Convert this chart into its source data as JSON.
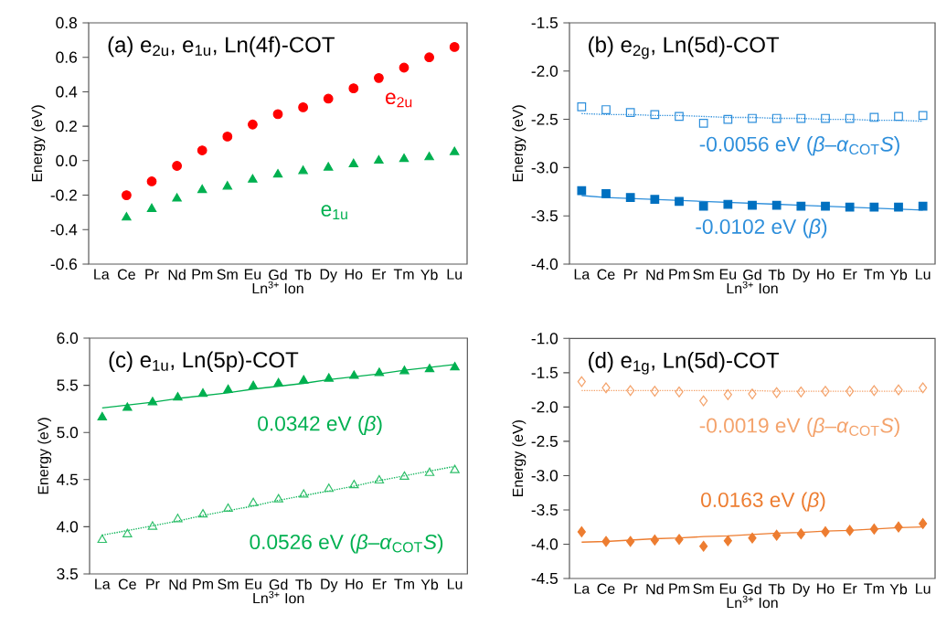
{
  "chart_data": [
    {
      "type": "scatter",
      "title": "(a) e$_{2u}$, e$_{1u}$, Ln(4f)-COT",
      "xlabel": "Ln$^{3+}$ Ion",
      "ylabel": "Energy (eV)",
      "categories": [
        "La",
        "Ce",
        "Pr",
        "Nd",
        "Pm",
        "Sm",
        "Eu",
        "Gd",
        "Tb",
        "Dy",
        "Ho",
        "Er",
        "Tm",
        "Yb",
        "Lu"
      ],
      "ylim": [
        -0.6,
        0.8
      ],
      "yticks": [
        {
          "value": -0.6,
          "label": "-0.6"
        },
        {
          "value": -0.4,
          "label": "-0.4"
        },
        {
          "value": -0.2,
          "label": "-0.2"
        },
        {
          "value": 0,
          "label": "0.0"
        },
        {
          "value": 0.2,
          "label": "0.2"
        },
        {
          "value": 0.4,
          "label": "0.4"
        },
        {
          "value": 0.6,
          "label": "0.6"
        },
        {
          "value": 0.8,
          "label": "0.8"
        }
      ],
      "series": [
        {
          "name": "e$_{2u}$",
          "marker": "circle",
          "color": "#ff0000",
          "values": [
            null,
            -0.2,
            -0.12,
            -0.03,
            0.06,
            0.14,
            0.21,
            0.27,
            0.31,
            0.36,
            0.42,
            0.48,
            0.54,
            0.6,
            0.66
          ]
        },
        {
          "name": "e$_{1u}$",
          "marker": "triangle",
          "color": "#00b050",
          "values": [
            null,
            -0.33,
            -0.28,
            -0.22,
            -0.17,
            -0.15,
            -0.11,
            -0.08,
            -0.06,
            -0.04,
            -0.02,
            0.0,
            0.01,
            0.02,
            0.05
          ]
        }
      ]
    },
    {
      "type": "scatter",
      "title": "(b) e$_{2g}$, Ln(5d)-COT",
      "xlabel": "Ln$^{3+}$ Ion",
      "ylabel": "Energy (eV)",
      "categories": [
        "La",
        "Ce",
        "Pr",
        "Nd",
        "Pm",
        "Sm",
        "Eu",
        "Gd",
        "Tb",
        "Dy",
        "Ho",
        "Er",
        "Tm",
        "Yb",
        "Lu"
      ],
      "ylim": [
        -4.0,
        -1.5
      ],
      "yticks": [
        {
          "value": -4.0,
          "label": "-4.0"
        },
        {
          "value": -3.5,
          "label": "-3.5"
        },
        {
          "value": -3.0,
          "label": "-3.0"
        },
        {
          "value": -2.5,
          "label": "-2.5"
        },
        {
          "value": -2.0,
          "label": "-2.0"
        },
        {
          "value": -1.5,
          "label": "-1.5"
        }
      ],
      "series": [
        {
          "marker": "square",
          "color": "#2e8fdb",
          "values": [
            -2.37,
            -2.4,
            -2.43,
            -2.45,
            -2.47,
            -2.54,
            -2.5,
            -2.49,
            -2.49,
            -2.49,
            -2.49,
            -2.49,
            -2.48,
            -2.47,
            -2.46
          ]
        },
        {
          "marker": "square",
          "color": "#0070c0",
          "values": [
            -3.24,
            -3.27,
            -3.31,
            -3.33,
            -3.35,
            -3.4,
            -3.38,
            -3.39,
            -3.39,
            -3.4,
            -3.4,
            -3.41,
            -3.41,
            -3.41,
            -3.4
          ]
        },
        {
          "name": "-0.0056 eV (*β*–*α*$_{COT}$*S*)",
          "type": "line",
          "line_style": "dotted",
          "color": "#2e8fdb",
          "values": [
            -2.44,
            -2.45,
            -2.45,
            -2.46,
            -2.46,
            -2.47,
            -2.48,
            -2.48,
            -2.49,
            -2.49,
            -2.5,
            -2.5,
            -2.51,
            -2.51,
            -2.52
          ]
        },
        {
          "name": "-0.0102 eV (*β*)",
          "type": "line",
          "line_style": "solid",
          "color": "#2e8fdb",
          "values": [
            -3.29,
            -3.31,
            -3.32,
            -3.33,
            -3.34,
            -3.35,
            -3.36,
            -3.37,
            -3.38,
            -3.39,
            -3.4,
            -3.41,
            -3.42,
            -3.43,
            -3.44
          ]
        }
      ]
    },
    {
      "type": "scatter",
      "title": "(c) e$_{1u}$, Ln(5p)-COT",
      "xlabel": "Ln$^{3+}$ Ion",
      "ylabel": "Energy (eV)",
      "categories": [
        "La",
        "Ce",
        "Pr",
        "Nd",
        "Pm",
        "Sm",
        "Eu",
        "Gd",
        "Tb",
        "Dy",
        "Ho",
        "Er",
        "Tm",
        "Yb",
        "Lu"
      ],
      "ylim": [
        3.5,
        6.0
      ],
      "yticks": [
        {
          "value": 3.5,
          "label": "3.5"
        },
        {
          "value": 4.0,
          "label": "4.0"
        },
        {
          "value": 4.5,
          "label": "4.5"
        },
        {
          "value": 5.0,
          "label": "5.0"
        },
        {
          "value": 5.5,
          "label": "5.5"
        },
        {
          "value": 6.0,
          "label": "6.0"
        }
      ],
      "series": [
        {
          "marker": "triangle",
          "color": "#00b050",
          "values": [
            5.16,
            5.26,
            5.32,
            5.37,
            5.41,
            5.45,
            5.49,
            5.52,
            5.55,
            5.57,
            5.6,
            5.63,
            5.65,
            5.67,
            5.69
          ]
        },
        {
          "marker": "triangle",
          "color": "#2fbf6a",
          "values": [
            3.86,
            3.92,
            4.0,
            4.08,
            4.13,
            4.19,
            4.25,
            4.29,
            4.34,
            4.4,
            4.44,
            4.49,
            4.53,
            4.57,
            4.6
          ]
        },
        {
          "name": "0.0342 eV (*β*)",
          "type": "line",
          "line_style": "solid",
          "color": "#00b050",
          "values": [
            5.26,
            5.29,
            5.32,
            5.36,
            5.39,
            5.42,
            5.46,
            5.49,
            5.52,
            5.56,
            5.59,
            5.62,
            5.66,
            5.69,
            5.72
          ]
        },
        {
          "name": "0.0526 eV (*β*–*α*$_{COT}$*S*)",
          "type": "line",
          "line_style": "dotted",
          "color": "#00b050",
          "values": [
            3.91,
            3.96,
            4.01,
            4.06,
            4.12,
            4.17,
            4.22,
            4.28,
            4.33,
            4.38,
            4.43,
            4.49,
            4.54,
            4.59,
            4.64
          ]
        }
      ]
    },
    {
      "type": "scatter",
      "title": "(d) e$_{1g}$, Ln(5d)-COT",
      "xlabel": "Ln$^{3+}$ Ion",
      "ylabel": "Energy (eV)",
      "categories": [
        "La",
        "Ce",
        "Pr",
        "Nd",
        "Pm",
        "Sm",
        "Eu",
        "Gd",
        "Tb",
        "Dy",
        "Ho",
        "Er",
        "Tm",
        "Yb",
        "Lu"
      ],
      "ylim": [
        -4.5,
        -1.0
      ],
      "yticks": [
        {
          "value": -4.5,
          "label": "-4.5"
        },
        {
          "value": -4.0,
          "label": "-4.0"
        },
        {
          "value": -3.5,
          "label": "-3.5"
        },
        {
          "value": -3.0,
          "label": "-3.0"
        },
        {
          "value": -2.5,
          "label": "-2.5"
        },
        {
          "value": -2.0,
          "label": "-2.0"
        },
        {
          "value": -1.5,
          "label": "-1.5"
        },
        {
          "value": -1.0,
          "label": "-1.0"
        }
      ],
      "series": [
        {
          "marker": "diamond",
          "color": "#f4a36c",
          "values": [
            -1.63,
            -1.72,
            -1.76,
            -1.77,
            -1.78,
            -1.91,
            -1.82,
            -1.81,
            -1.79,
            -1.78,
            -1.77,
            -1.77,
            -1.76,
            -1.75,
            -1.72
          ]
        },
        {
          "marker": "diamond",
          "color": "#ed7d31",
          "values": [
            -3.82,
            -3.96,
            -3.96,
            -3.94,
            -3.93,
            -4.03,
            -3.95,
            -3.91,
            -3.87,
            -3.85,
            -3.82,
            -3.8,
            -3.78,
            -3.75,
            -3.7
          ]
        },
        {
          "name": "-0.0019 eV (*β*–*α*$_{COT}$*S*)",
          "type": "line",
          "line_style": "dotted",
          "color": "#f4a36c",
          "values": [
            -1.76,
            -1.76,
            -1.76,
            -1.76,
            -1.76,
            -1.76,
            -1.76,
            -1.76,
            -1.77,
            -1.77,
            -1.77,
            -1.77,
            -1.77,
            -1.77,
            -1.77
          ]
        },
        {
          "name": "0.0163 eV (*β*)",
          "type": "line",
          "line_style": "solid",
          "color": "#ed7d31",
          "values": [
            -3.97,
            -3.96,
            -3.94,
            -3.92,
            -3.91,
            -3.89,
            -3.88,
            -3.86,
            -3.84,
            -3.83,
            -3.81,
            -3.8,
            -3.78,
            -3.76,
            -3.75
          ]
        }
      ]
    }
  ]
}
